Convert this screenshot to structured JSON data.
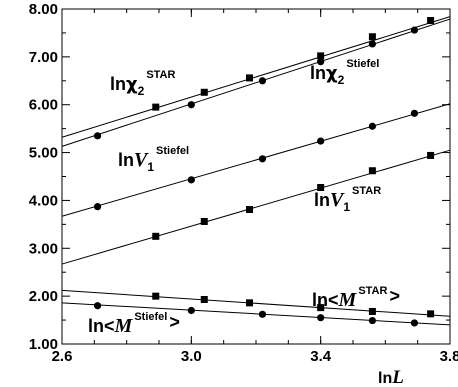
{
  "chart_data": {
    "type": "scatter",
    "xlim": [
      2.6,
      3.8
    ],
    "ylim": [
      1.0,
      8.0
    ],
    "x_ticks": [
      "2.6",
      "3.0",
      "3.4",
      "3.8"
    ],
    "y_ticks": [
      "1.00",
      "2.00",
      "3.00",
      "4.00",
      "5.00",
      "6.00",
      "7.00",
      "8.00"
    ],
    "x_tick_values": [
      2.6,
      3.0,
      3.4,
      3.8
    ],
    "y_tick_values": [
      1,
      2,
      3,
      4,
      5,
      6,
      7,
      8
    ],
    "xlabel": {
      "prefix": "ln",
      "var": "L"
    },
    "grid": false,
    "series": [
      {
        "marker": "square",
        "label": {
          "prefix": "ln",
          "symbol": "χ",
          "sub": "2",
          "sup": "STAR"
        },
        "x": [
          2.89,
          3.04,
          3.18,
          3.4,
          3.56,
          3.74
        ],
        "y": [
          5.95,
          6.26,
          6.56,
          7.02,
          7.42,
          7.76
        ],
        "fit": {
          "x": [
            2.6,
            3.8
          ],
          "y": [
            5.32,
            7.84
          ]
        }
      },
      {
        "marker": "circle",
        "label": {
          "prefix": "ln",
          "symbol": "χ",
          "sub": "2",
          "sup": "Stiefel"
        },
        "x": [
          2.71,
          3.0,
          3.22,
          3.4,
          3.56,
          3.69
        ],
        "y": [
          5.35,
          6.0,
          6.5,
          6.9,
          7.27,
          7.56
        ],
        "fit": {
          "x": [
            2.6,
            3.8
          ],
          "y": [
            5.13,
            7.79
          ]
        }
      },
      {
        "marker": "circle",
        "label": {
          "prefix": "ln",
          "symbol": "V",
          "sub": "1",
          "sup": "Stiefel"
        },
        "x": [
          2.71,
          3.0,
          3.22,
          3.4,
          3.56,
          3.69
        ],
        "y": [
          3.87,
          4.43,
          4.87,
          5.24,
          5.55,
          5.82
        ],
        "fit": {
          "x": [
            2.6,
            3.8
          ],
          "y": [
            3.67,
            6.02
          ]
        }
      },
      {
        "marker": "square",
        "label": {
          "prefix": "ln",
          "symbol": "V",
          "sub": "1",
          "sup": "STAR"
        },
        "x": [
          2.89,
          3.04,
          3.18,
          3.4,
          3.56,
          3.74
        ],
        "y": [
          3.25,
          3.56,
          3.81,
          4.27,
          4.62,
          4.94
        ],
        "fit": {
          "x": [
            2.6,
            3.8
          ],
          "y": [
            2.67,
            5.05
          ]
        }
      },
      {
        "marker": "square",
        "label": {
          "prefix": "ln<",
          "symbol": "M",
          "sup": "STAR",
          "suffix": ">"
        },
        "x": [
          2.89,
          3.04,
          3.18,
          3.4,
          3.56,
          3.74
        ],
        "y": [
          2.0,
          1.93,
          1.86,
          1.76,
          1.68,
          1.63
        ],
        "fit": {
          "x": [
            2.6,
            3.8
          ],
          "y": [
            2.12,
            1.58
          ]
        }
      },
      {
        "marker": "circle",
        "label": {
          "prefix": "ln<",
          "symbol": "M",
          "sup": "Stiefel",
          "suffix": ">"
        },
        "x": [
          2.71,
          3.0,
          3.22,
          3.4,
          3.56,
          3.69
        ],
        "y": [
          1.8,
          1.7,
          1.62,
          1.55,
          1.49,
          1.44
        ],
        "fit": {
          "x": [
            2.6,
            3.8
          ],
          "y": [
            1.86,
            1.4
          ]
        }
      }
    ]
  }
}
